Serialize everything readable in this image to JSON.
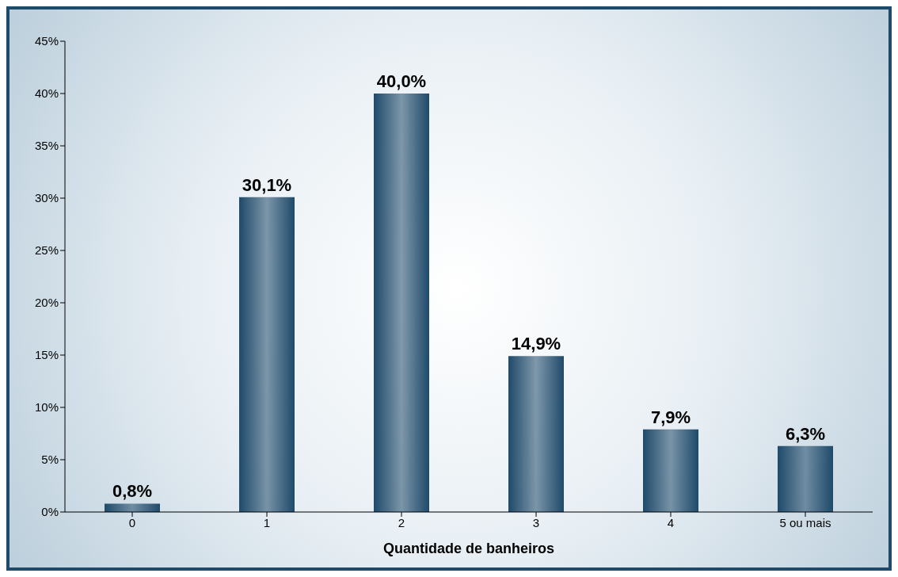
{
  "chart_data": {
    "type": "bar",
    "xlabel": "Quantidade de banheiros",
    "categories": [
      "0",
      "1",
      "2",
      "3",
      "4",
      "5 ou mais"
    ],
    "values": [
      0.8,
      30.1,
      40.0,
      14.9,
      7.9,
      6.3
    ],
    "value_labels": [
      "0,8%",
      "30,1%",
      "40,0%",
      "14,9%",
      "7,9%",
      "6,3%"
    ],
    "color": "#1f4a6a",
    "ylim": [
      0,
      45
    ],
    "yticks": [
      {
        "value": 0,
        "label": "0%"
      },
      {
        "value": 5,
        "label": "5%"
      },
      {
        "value": 10,
        "label": "10%"
      },
      {
        "value": 15,
        "label": "15%"
      },
      {
        "value": 20,
        "label": "20%"
      },
      {
        "value": 25,
        "label": "25%"
      },
      {
        "value": 30,
        "label": "30%"
      },
      {
        "value": 35,
        "label": "35%"
      },
      {
        "value": 40,
        "label": "40%"
      },
      {
        "value": 45,
        "label": "45%"
      }
    ],
    "grid": false,
    "legend": false
  }
}
